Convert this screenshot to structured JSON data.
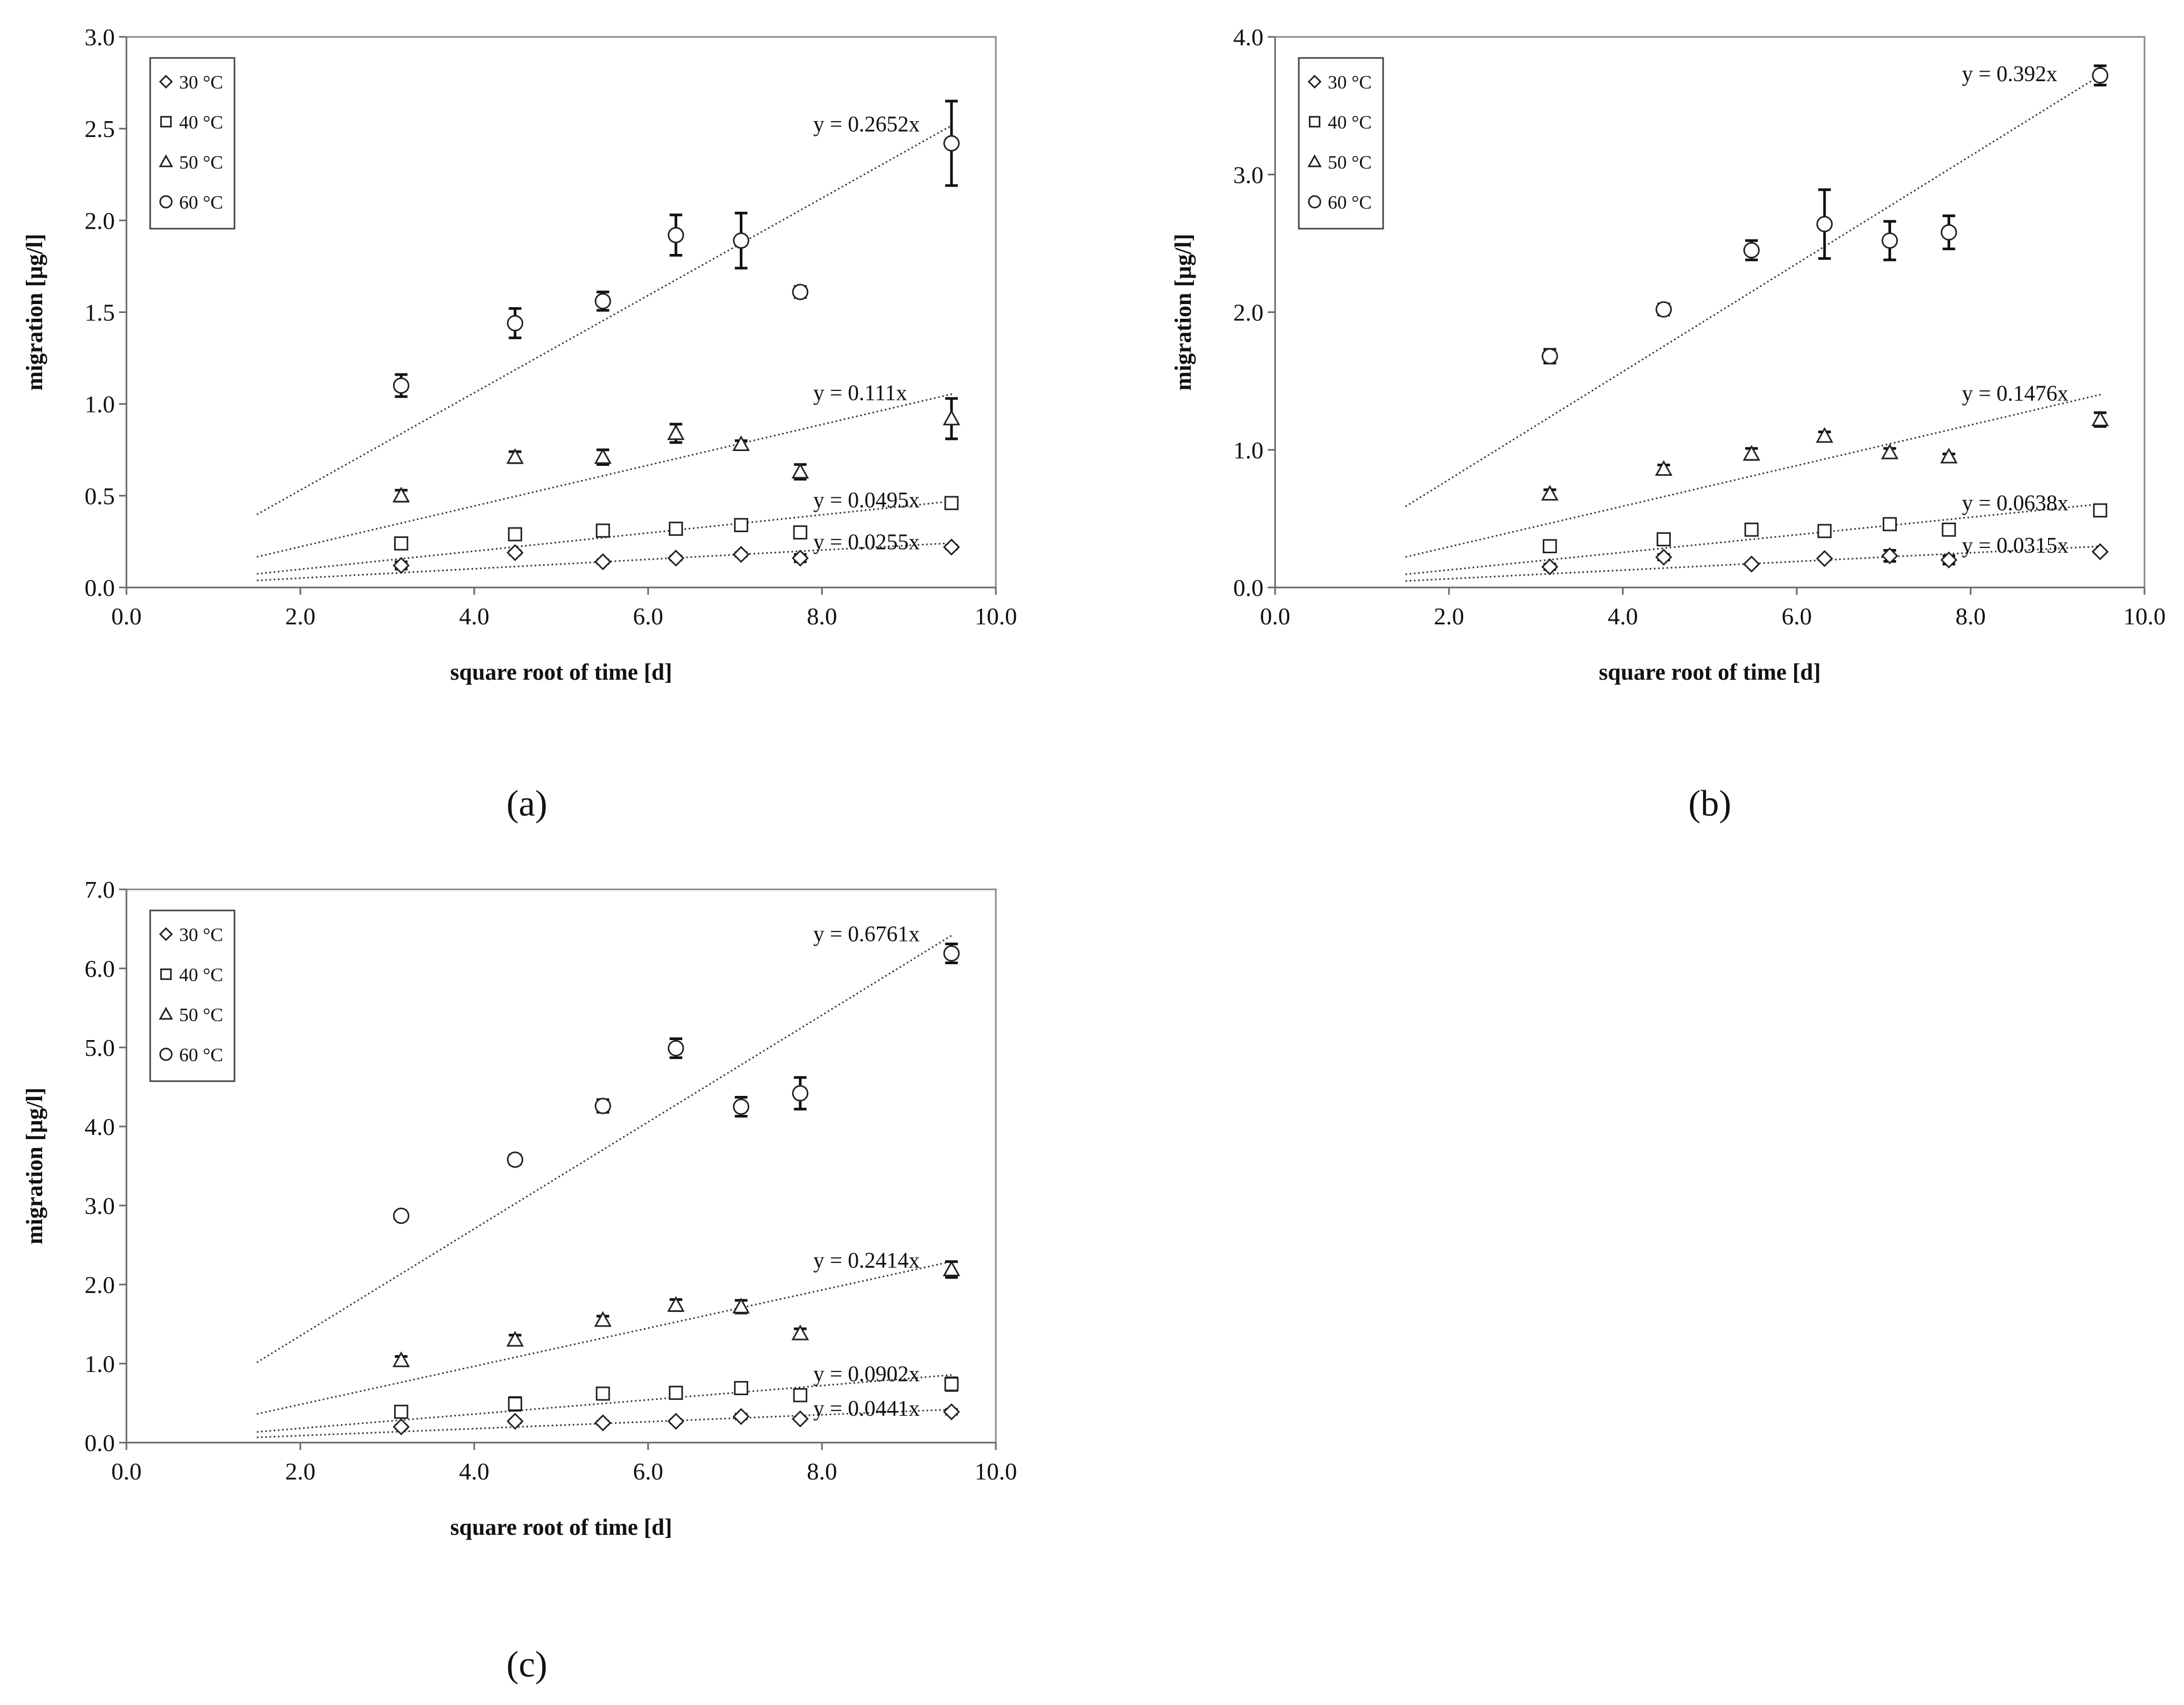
{
  "figure": {
    "panel_labels": [
      "(a)",
      "(b)",
      "(c)"
    ]
  },
  "chart_data": [
    {
      "type": "scatter",
      "panel": "(a)",
      "title": "",
      "xlabel": "square root of time [d]",
      "ylabel": "migration [µg/l]",
      "xlim": [
        0,
        10
      ],
      "ylim": [
        0,
        3
      ],
      "xticks": [
        "0.0",
        "2.0",
        "4.0",
        "6.0",
        "8.0",
        "10.0"
      ],
      "yticks": [
        "0.0",
        "0.5",
        "1.0",
        "1.5",
        "2.0",
        "2.5",
        "3.0"
      ],
      "legend_position": "top-left",
      "x": [
        3.16,
        4.47,
        5.48,
        6.32,
        7.07,
        7.75,
        9.49
      ],
      "series": [
        {
          "name": "30 °C",
          "marker": "diamond",
          "values": [
            0.12,
            0.19,
            0.14,
            0.16,
            0.18,
            0.16,
            0.22
          ],
          "errors": [
            0.02,
            0.01,
            0.01,
            0.01,
            0.01,
            0.02,
            0.01
          ],
          "trend_slope": 0.0255,
          "equation": "y = 0.0255x"
        },
        {
          "name": "40 °C",
          "marker": "square",
          "values": [
            0.24,
            0.29,
            0.31,
            0.32,
            0.34,
            0.3,
            0.46
          ],
          "errors": [
            0.02,
            0.02,
            0.03,
            0.02,
            0.02,
            0.02,
            0.03
          ],
          "trend_slope": 0.0495,
          "equation": "y = 0.0495x"
        },
        {
          "name": "50 °C",
          "marker": "triangle",
          "values": [
            0.5,
            0.71,
            0.71,
            0.84,
            0.78,
            0.63,
            0.92
          ],
          "errors": [
            0.03,
            0.03,
            0.04,
            0.05,
            0.02,
            0.04,
            0.11
          ],
          "trend_slope": 0.111,
          "equation": "y = 0.111x"
        },
        {
          "name": "60 °C",
          "marker": "circle",
          "values": [
            1.1,
            1.44,
            1.56,
            1.92,
            1.89,
            1.61,
            2.42
          ],
          "errors": [
            0.06,
            0.08,
            0.05,
            0.11,
            0.15,
            0.03,
            0.23
          ],
          "trend_slope": 0.2652,
          "equation": "y = 0.2652x"
        }
      ]
    },
    {
      "type": "scatter",
      "panel": "(b)",
      "title": "",
      "xlabel": "square root of time [d]",
      "ylabel": "migration [µg/l]",
      "xlim": [
        0,
        10
      ],
      "ylim": [
        0,
        4
      ],
      "xticks": [
        "0.0",
        "2.0",
        "4.0",
        "6.0",
        "8.0",
        "10.0"
      ],
      "yticks": [
        "0.0",
        "1.0",
        "2.0",
        "3.0",
        "4.0"
      ],
      "legend_position": "top-left",
      "x": [
        3.16,
        4.47,
        5.48,
        6.32,
        7.07,
        7.75,
        9.49
      ],
      "series": [
        {
          "name": "30 °C",
          "marker": "diamond",
          "values": [
            0.15,
            0.22,
            0.17,
            0.21,
            0.23,
            0.2,
            0.26
          ],
          "errors": [
            0.02,
            0.02,
            0.01,
            0.01,
            0.04,
            0.03,
            0.01
          ],
          "trend_slope": 0.0315,
          "equation": "y = 0.0315x"
        },
        {
          "name": "40 °C",
          "marker": "square",
          "values": [
            0.3,
            0.35,
            0.42,
            0.41,
            0.46,
            0.42,
            0.56
          ],
          "errors": [
            0.02,
            0.02,
            0.04,
            0.02,
            0.02,
            0.02,
            0.03
          ],
          "trend_slope": 0.0638,
          "equation": "y = 0.0638x"
        },
        {
          "name": "50 °C",
          "marker": "triangle",
          "values": [
            0.68,
            0.86,
            0.97,
            1.1,
            0.98,
            0.95,
            1.22
          ],
          "errors": [
            0.03,
            0.03,
            0.04,
            0.03,
            0.03,
            0.02,
            0.05
          ],
          "trend_slope": 0.1476,
          "equation": "y = 0.1476x"
        },
        {
          "name": "60 °C",
          "marker": "circle",
          "values": [
            1.68,
            2.02,
            2.45,
            2.64,
            2.52,
            2.58,
            3.72
          ],
          "errors": [
            0.05,
            0.04,
            0.07,
            0.25,
            0.14,
            0.12,
            0.07
          ],
          "trend_slope": 0.392,
          "equation": "y = 0.392x"
        }
      ]
    },
    {
      "type": "scatter",
      "panel": "(c)",
      "title": "",
      "xlabel": "square root of time [d]",
      "ylabel": "migration [µg/l]",
      "xlim": [
        0,
        10
      ],
      "ylim": [
        0,
        7
      ],
      "xticks": [
        "0.0",
        "2.0",
        "4.0",
        "6.0",
        "8.0",
        "10.0"
      ],
      "yticks": [
        "0.0",
        "1.0",
        "2.0",
        "3.0",
        "4.0",
        "5.0",
        "6.0",
        "7.0"
      ],
      "legend_position": "top-left",
      "x": [
        3.16,
        4.47,
        5.48,
        6.32,
        7.07,
        7.75,
        9.49
      ],
      "series": [
        {
          "name": "30 °C",
          "marker": "diamond",
          "values": [
            0.2,
            0.27,
            0.25,
            0.27,
            0.33,
            0.3,
            0.39
          ],
          "errors": [
            0.02,
            0.02,
            0.02,
            0.02,
            0.03,
            0.02,
            0.03
          ],
          "trend_slope": 0.0441,
          "equation": "y = 0.0441x"
        },
        {
          "name": "40 °C",
          "marker": "square",
          "values": [
            0.39,
            0.49,
            0.62,
            0.63,
            0.69,
            0.6,
            0.74
          ],
          "errors": [
            0.05,
            0.08,
            0.05,
            0.05,
            0.04,
            0.06,
            0.08
          ],
          "trend_slope": 0.0902,
          "equation": "y = 0.0902x"
        },
        {
          "name": "50 °C",
          "marker": "triangle",
          "values": [
            1.04,
            1.3,
            1.55,
            1.74,
            1.72,
            1.38,
            2.19
          ],
          "errors": [
            0.05,
            0.06,
            0.05,
            0.07,
            0.08,
            0.06,
            0.1
          ],
          "trend_slope": 0.2414,
          "equation": "y = 0.2414x"
        },
        {
          "name": "60 °C",
          "marker": "circle",
          "values": [
            2.87,
            3.58,
            4.26,
            4.99,
            4.25,
            4.42,
            6.19
          ],
          "errors": [
            0.05,
            0.06,
            0.08,
            0.12,
            0.12,
            0.2,
            0.12
          ],
          "trend_slope": 0.6761,
          "equation": "y = 0.6761x"
        }
      ]
    }
  ]
}
